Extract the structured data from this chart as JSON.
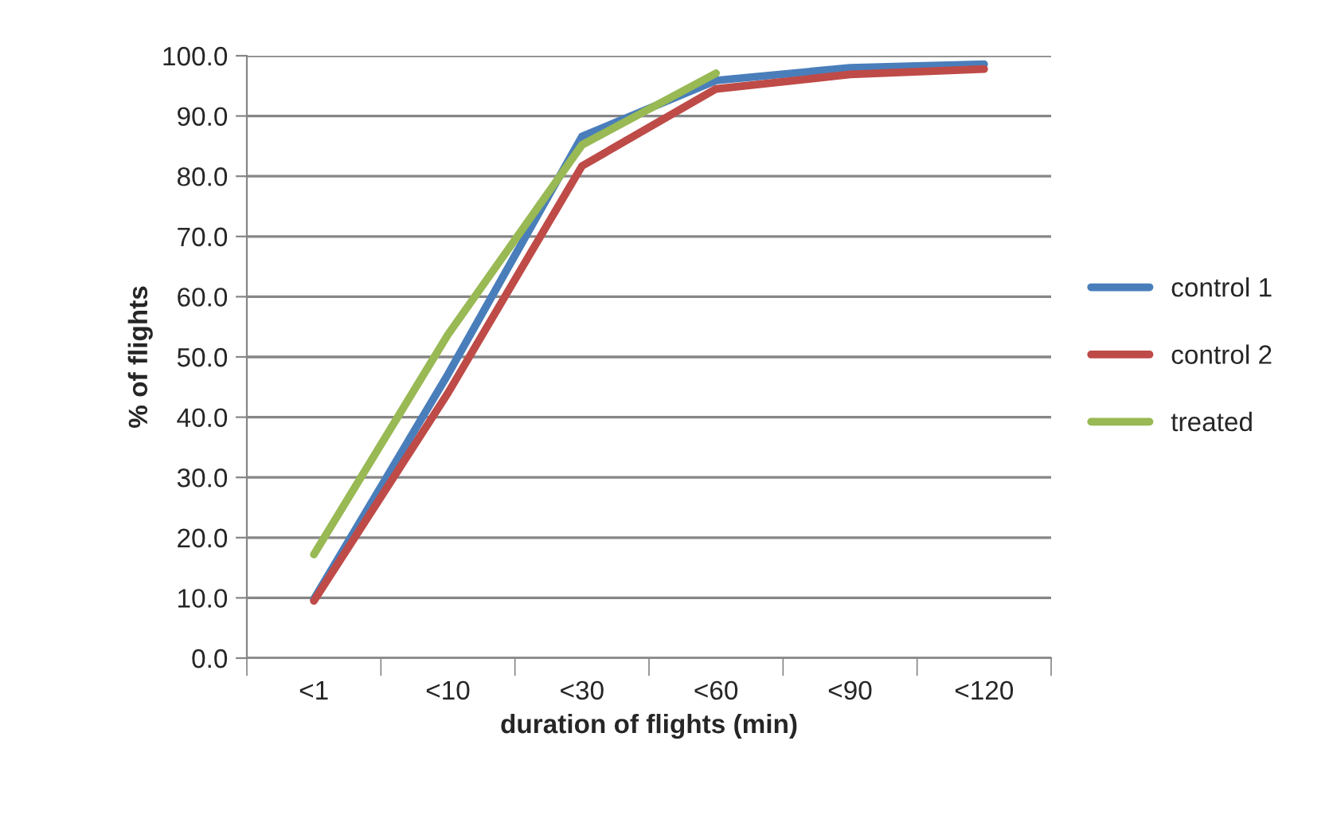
{
  "chart_data": {
    "type": "line",
    "xlabel": "duration of flights (min)",
    "ylabel": "% of flights",
    "categories": [
      "<1",
      "<10",
      "<30",
      "<60",
      "<90",
      "<120"
    ],
    "series": [
      {
        "name": "control 1",
        "color": "#4a7ebb",
        "values": [
          9.8,
          47.1,
          86.6,
          95.9,
          98.0,
          98.6
        ]
      },
      {
        "name": "control 2",
        "color": "#be4b48",
        "values": [
          9.5,
          44.0,
          81.7,
          94.5,
          96.9,
          97.8
        ]
      },
      {
        "name": "treated",
        "color": "#98b954",
        "values": [
          17.2,
          53.7,
          85.2,
          97.1,
          null,
          null
        ]
      }
    ],
    "ylim": [
      0,
      100
    ],
    "yticks": [
      {
        "value": 0,
        "label": "0.0"
      },
      {
        "value": 10,
        "label": "10.0"
      },
      {
        "value": 20,
        "label": "20.0"
      },
      {
        "value": 30,
        "label": "30.0"
      },
      {
        "value": 40,
        "label": "40.0"
      },
      {
        "value": 50,
        "label": "50.0"
      },
      {
        "value": 60,
        "label": "60.0"
      },
      {
        "value": 70,
        "label": "70.0"
      },
      {
        "value": 80,
        "label": "80.0"
      },
      {
        "value": 90,
        "label": "90.0"
      },
      {
        "value": 100,
        "label": "100.0"
      }
    ],
    "grid": "y",
    "legend": "right",
    "marker": "none",
    "line_style": "solid"
  }
}
